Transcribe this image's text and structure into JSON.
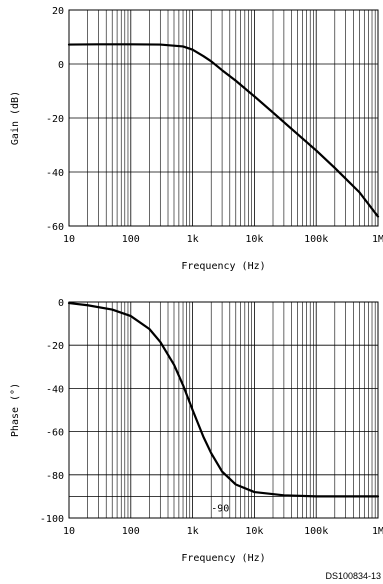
{
  "chart_data": [
    {
      "type": "line",
      "x_scale": "log",
      "xlim": [
        10,
        1000000
      ],
      "ylim": [
        -60,
        20
      ],
      "xlabel": "Frequency (Hz)",
      "ylabel": "Gain (dB)",
      "x_tick_labels": [
        "10",
        "100",
        "1k",
        "10k",
        "100k",
        "1M"
      ],
      "y_ticks": [
        20,
        0,
        -20,
        -40,
        -60
      ],
      "y_tick_labels": [
        "20",
        "0",
        "-20",
        "-40",
        "-60"
      ],
      "grid": true,
      "x": [
        10,
        30,
        100,
        300,
        700,
        1000,
        1500,
        2000,
        3000,
        5000,
        10000,
        20000,
        50000,
        100000,
        200000,
        500000,
        1000000
      ],
      "y": [
        7.2,
        7.3,
        7.3,
        7.2,
        6.5,
        5.3,
        2.9,
        1.0,
        -2.3,
        -6.2,
        -12.0,
        -18.0,
        -26.0,
        -32.0,
        -38.5,
        -47.5,
        -56.5
      ]
    },
    {
      "type": "line",
      "x_scale": "log",
      "xlim": [
        10,
        1000000
      ],
      "ylim": [
        -100,
        0
      ],
      "xlabel": "Frequency (Hz)",
      "ylabel": "Phase (°)",
      "x_tick_labels": [
        "10",
        "100",
        "1k",
        "10k",
        "100k",
        "1M"
      ],
      "y_ticks": [
        0,
        -20,
        -40,
        -60,
        -80,
        -100
      ],
      "y_tick_labels": [
        "0",
        "-20",
        "-40",
        "-60",
        "-80",
        "-100"
      ],
      "reference_line": -90,
      "annotation": "-90",
      "grid": true,
      "x": [
        10,
        20,
        50,
        100,
        200,
        300,
        500,
        700,
        1000,
        1500,
        2000,
        3000,
        5000,
        10000,
        30000,
        100000,
        1000000
      ],
      "y": [
        -0.5,
        -1.5,
        -3.5,
        -6.5,
        -12.5,
        -18.5,
        -29.0,
        -38.5,
        -50.0,
        -62.5,
        -70.0,
        -78.5,
        -84.5,
        -88.0,
        -89.5,
        -90.0,
        -90.0
      ]
    }
  ],
  "figure_ref": "DS100834-13"
}
